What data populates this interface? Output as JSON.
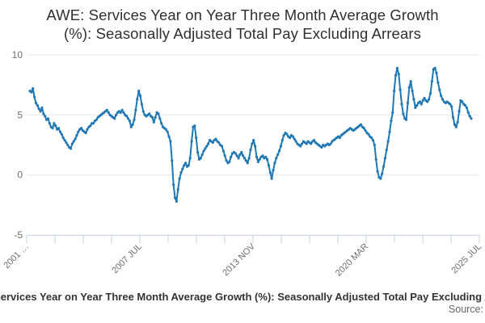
{
  "chart_data": {
    "type": "line",
    "title": "AWE: Services Year on Year Three Month Average Growth (%): Seasonally Adjusted Total Pay Excluding Arrears",
    "title_lines": [
      "AWE: Services Year on Year Three Month Average Growth",
      "(%): Seasonally Adjusted Total Pay Excluding Arrears"
    ],
    "ylim": [
      -5,
      10
    ],
    "y_ticks": [
      10,
      5,
      0,
      -5
    ],
    "grid": "horizontal-only",
    "legend_position": "bottom",
    "x_axis": {
      "tick_count": 17,
      "labeled_tick_indices": [
        0,
        4,
        8,
        12,
        16
      ],
      "labels": [
        "2001 …",
        "2007 JUL",
        "2013 NOV",
        "2020 MAR",
        "2025 JUL"
      ],
      "label_rotation_deg": -45,
      "frequency": "monthly"
    },
    "series": [
      {
        "name": "AWE: Services Year on Year Three Month Average Growth (%): Seasonally Adjusted Total Pay Excluding Arrears",
        "color": "#1f77b4",
        "marker": "circle",
        "values": [
          7.0,
          6.9,
          7.2,
          6.5,
          6.0,
          5.8,
          5.5,
          5.3,
          5.6,
          5.1,
          4.9,
          4.6,
          4.7,
          4.3,
          4.0,
          3.9,
          4.3,
          4.1,
          3.8,
          3.9,
          3.6,
          3.4,
          3.1,
          2.9,
          2.7,
          2.5,
          2.3,
          2.2,
          2.6,
          2.8,
          3.0,
          3.3,
          3.6,
          3.8,
          3.9,
          3.7,
          3.6,
          3.5,
          3.8,
          4.0,
          4.1,
          4.3,
          4.3,
          4.5,
          4.6,
          4.8,
          4.9,
          5.0,
          5.1,
          5.2,
          5.3,
          5.4,
          5.2,
          5.0,
          4.9,
          4.8,
          4.7,
          5.0,
          5.2,
          5.3,
          5.2,
          5.4,
          5.2,
          5.0,
          4.9,
          4.7,
          4.5,
          4.0,
          4.2,
          4.6,
          5.4,
          6.3,
          7.0,
          6.6,
          5.9,
          5.3,
          5.0,
          4.9,
          5.0,
          5.1,
          4.9,
          4.8,
          4.4,
          4.8,
          5.2,
          5.1,
          4.7,
          4.3,
          4.0,
          3.9,
          3.8,
          3.6,
          3.2,
          2.8,
          1.2,
          -0.8,
          -1.9,
          -2.2,
          -1.2,
          -0.3,
          0.2,
          0.5,
          0.8,
          1.0,
          0.7,
          0.8,
          1.4,
          2.8,
          4.0,
          4.1,
          3.1,
          1.9,
          1.3,
          1.4,
          1.7,
          2.0,
          2.2,
          2.4,
          2.6,
          2.9,
          2.8,
          2.7,
          2.9,
          3.0,
          2.8,
          2.7,
          2.5,
          2.4,
          2.0,
          1.6,
          1.2,
          1.0,
          1.1,
          1.5,
          1.8,
          1.9,
          1.8,
          1.6,
          1.4,
          1.7,
          1.9,
          1.6,
          1.4,
          1.2,
          1.0,
          1.4,
          2.1,
          2.6,
          2.9,
          2.4,
          1.5,
          1.1,
          1.3,
          1.5,
          1.6,
          1.4,
          1.5,
          1.3,
          0.8,
          0.2,
          -0.3,
          0.4,
          1.0,
          1.4,
          1.7,
          2.0,
          2.4,
          2.9,
          3.3,
          3.5,
          3.4,
          3.2,
          3.1,
          3.3,
          3.2,
          3.0,
          2.8,
          2.6,
          2.5,
          2.4,
          2.6,
          2.8,
          2.7,
          2.6,
          2.8,
          2.7,
          2.6,
          2.8,
          2.9,
          2.7,
          2.6,
          2.5,
          2.4,
          2.3,
          2.5,
          2.4,
          2.5,
          2.6,
          2.5,
          2.6,
          2.8,
          2.9,
          3.0,
          3.1,
          3.2,
          3.1,
          3.3,
          3.4,
          3.5,
          3.6,
          3.7,
          3.8,
          3.9,
          3.8,
          3.7,
          3.8,
          3.9,
          4.0,
          4.1,
          4.2,
          4.0,
          3.9,
          3.7,
          3.5,
          3.4,
          3.2,
          3.1,
          2.9,
          2.5,
          1.3,
          0.3,
          -0.2,
          -0.3,
          0.1,
          0.7,
          1.4,
          2.1,
          2.8,
          3.6,
          4.5,
          5.2,
          7.0,
          8.3,
          8.9,
          8.4,
          7.1,
          5.9,
          5.1,
          4.7,
          4.6,
          6.0,
          7.3,
          7.8,
          7.0,
          6.3,
          5.6,
          5.8,
          6.0,
          6.1,
          5.9,
          6.2,
          6.4,
          6.2,
          6.1,
          6.3,
          6.8,
          7.8,
          8.8,
          8.9,
          8.5,
          7.7,
          7.1,
          6.6,
          6.3,
          6.1,
          6.0,
          6.1,
          6.0,
          5.9,
          5.7,
          4.8,
          4.2,
          4.0,
          4.4,
          5.3,
          6.2,
          6.1,
          5.9,
          5.8,
          5.6,
          5.2,
          4.9,
          4.7
        ]
      }
    ]
  },
  "legend": {
    "label": "AWE: Services Year on Year Three Month Average Growth (%): Seasonally Adjusted Total Pay Excluding Arrears"
  },
  "footer": {
    "source_label": "Source:"
  },
  "colors": {
    "line": "#1f77b4",
    "grid": "#e6e6e6",
    "axis": "#c5cfe0",
    "tick_text": "#6e6e6e",
    "title_text": "#2f2f2f"
  }
}
